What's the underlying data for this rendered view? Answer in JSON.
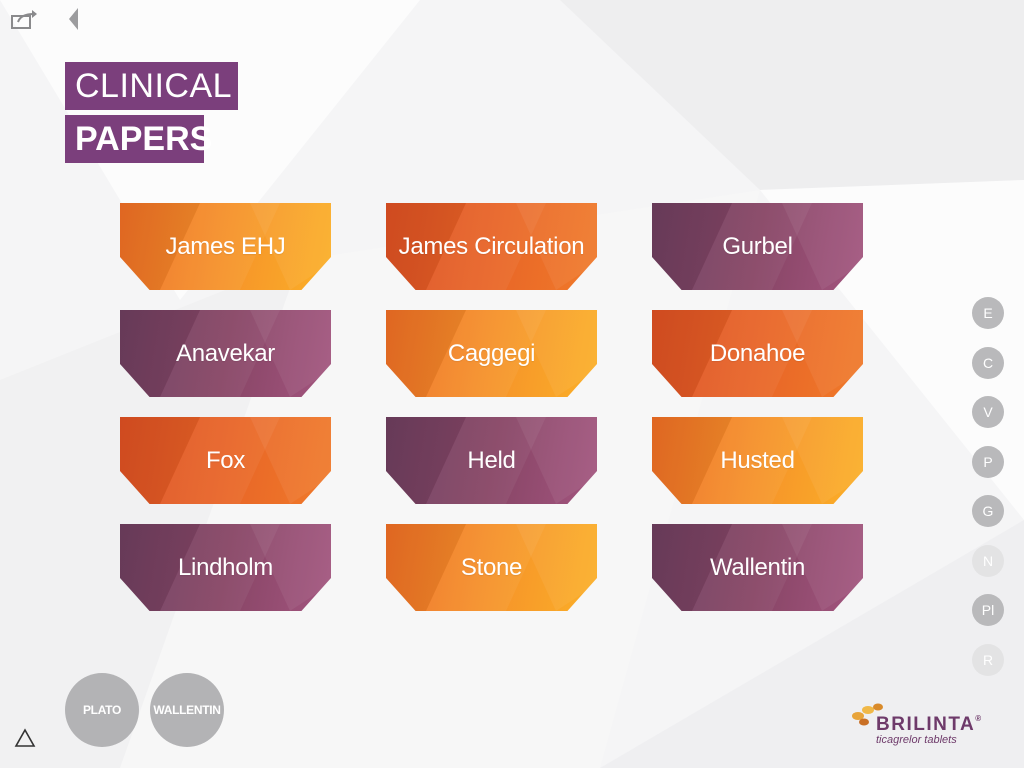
{
  "header": {
    "title_line1": "CLINICAL",
    "title_line2": "PAPERS",
    "share_icon": "share-icon",
    "back_icon": "back-triangle-icon"
  },
  "papers": [
    {
      "label": "James EHJ",
      "style": "orange"
    },
    {
      "label": "James Circulation",
      "style": "red"
    },
    {
      "label": "Gurbel",
      "style": "purple"
    },
    {
      "label": "Anavekar",
      "style": "purple"
    },
    {
      "label": "Caggegi",
      "style": "orange"
    },
    {
      "label": "Donahoe",
      "style": "red"
    },
    {
      "label": "Fox",
      "style": "red"
    },
    {
      "label": "Held",
      "style": "purple"
    },
    {
      "label": "Husted",
      "style": "orange"
    },
    {
      "label": "Lindholm",
      "style": "purple"
    },
    {
      "label": "Stone",
      "style": "orange"
    },
    {
      "label": "Wallentin",
      "style": "purple"
    }
  ],
  "index_nav": [
    {
      "label": "E",
      "enabled": true
    },
    {
      "label": "C",
      "enabled": true
    },
    {
      "label": "V",
      "enabled": true
    },
    {
      "label": "P",
      "enabled": true
    },
    {
      "label": "G",
      "enabled": true
    },
    {
      "label": "N",
      "enabled": false
    },
    {
      "label": "Pl",
      "enabled": true
    },
    {
      "label": "R",
      "enabled": false
    }
  ],
  "footer": {
    "plato_label": "PLATO",
    "wallentin_label": "WALLENTIN",
    "up_icon": "up-triangle-icon"
  },
  "logo": {
    "brand": "BRILINTA",
    "reg": "®",
    "tagline": "ticagrelor tablets"
  },
  "colors": {
    "brand_purple": "#7b3f7c",
    "orange": "#f58f2a",
    "red_orange": "#e05424",
    "purple_tile": "#874565",
    "button_grey": "#b3b3b5"
  }
}
